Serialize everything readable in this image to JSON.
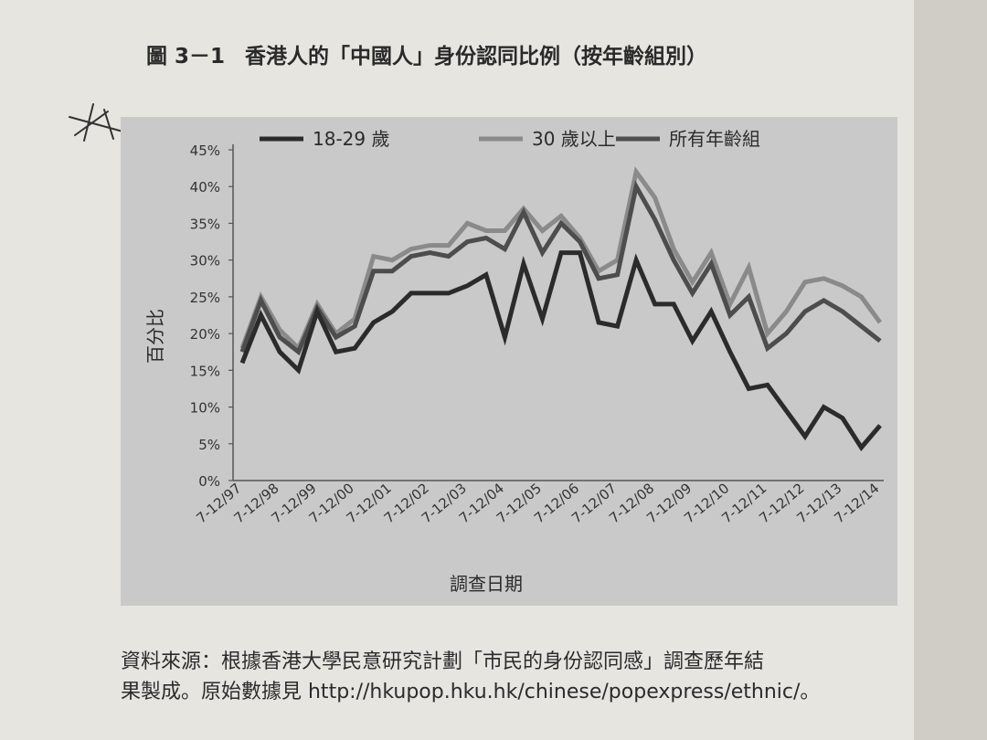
{
  "figure": {
    "number": "圖 3－1",
    "title": "香港人的「中國人」身份認同比例（按年齡組別）"
  },
  "source": {
    "line1": "資料來源：根據香港大學民意研究計劃「市民的身份認同感」調查歷年結",
    "line2": "果製成。原始數據見 http://hkupop.hku.hk/chinese/popexpress/ethnic/。"
  },
  "chart_data": {
    "type": "line",
    "xlabel": "調查日期",
    "ylabel": "百分比",
    "ylim": [
      0,
      45
    ],
    "yticks": [
      "0%",
      "5%",
      "10%",
      "15%",
      "20%",
      "25%",
      "30%",
      "35%",
      "40%",
      "45%"
    ],
    "xticks": [
      "7-12/97",
      "7-12/98",
      "7-12/99",
      "7-12/00",
      "7-12/01",
      "7-12/02",
      "7-12/03",
      "7-12/04",
      "7-12/05",
      "7-12/06",
      "7-12/07",
      "7-12/08",
      "7-12/09",
      "7-12/10",
      "7-12/11",
      "7-12/12",
      "7-12/13",
      "7-12/14"
    ],
    "grid": false,
    "legend": "top",
    "colors": {
      "s18_29": "#2b2b2b",
      "s30plus": "#8a8a8a",
      "all": "#4d4d4d"
    },
    "series": [
      {
        "name": "18-29 歲",
        "values": [
          16,
          22.5,
          17.5,
          15,
          23,
          17.5,
          18,
          21.5,
          23,
          25.5,
          25.5,
          25.5,
          26.5,
          28,
          19.5,
          29.5,
          22,
          31,
          31,
          21.5,
          21,
          30,
          24,
          24,
          19,
          23,
          17.5,
          12.5,
          13,
          9.5,
          6,
          10,
          8.5,
          4.5,
          7.5
        ]
      },
      {
        "name": "30 歲以上",
        "values": [
          18,
          25,
          20.5,
          18,
          24,
          20,
          22,
          30.5,
          30,
          31.5,
          32,
          32,
          35,
          34,
          34,
          37,
          34,
          36,
          33,
          28.5,
          30,
          42,
          38.5,
          31.5,
          27,
          31,
          24,
          29,
          20,
          23,
          27,
          27.5,
          26.5,
          25,
          21.5
        ]
      },
      {
        "name": "所有年齡組",
        "values": [
          17.5,
          24.5,
          19.5,
          17.5,
          23.5,
          19.5,
          21,
          28.5,
          28.5,
          30.5,
          31,
          30.5,
          32.5,
          33,
          31.5,
          36.5,
          31,
          35,
          32.5,
          27.5,
          28,
          40,
          35.5,
          30,
          25.5,
          29.5,
          22.5,
          25,
          18,
          20,
          23,
          24.5,
          23,
          21,
          19
        ]
      }
    ]
  }
}
